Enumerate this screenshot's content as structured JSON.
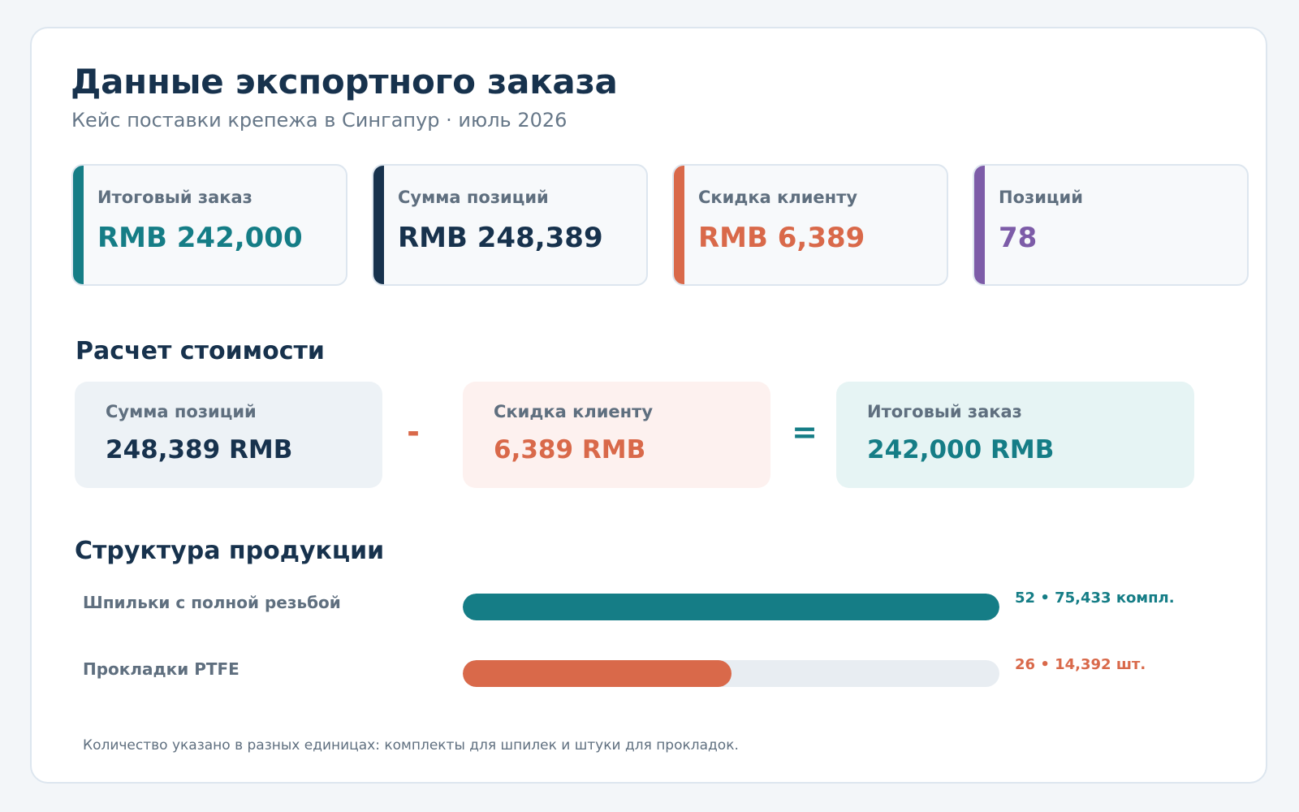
{
  "header": {
    "title": "Данные экспортного заказа",
    "subtitle": "Кейс поставки крепежа в Сингапур · июль 2026"
  },
  "kpis": [
    {
      "label": "Итоговый заказ",
      "value": "RMB 242,000",
      "color": "#157d86"
    },
    {
      "label": "Сумма позиций",
      "value": "RMB 248,389",
      "color": "#17324d"
    },
    {
      "label": "Скидка клиенту",
      "value": "RMB 6,389",
      "color": "#d9694a"
    },
    {
      "label": "Позиций",
      "value": "78",
      "color": "#7d5ca8"
    }
  ],
  "calculation": {
    "title": "Расчет стоимости",
    "items": [
      {
        "label": "Сумма позиций",
        "value": "248,389 RMB",
        "color": "#17324d",
        "background": "#edf2f6"
      },
      {
        "label": "Скидка клиенту",
        "value": "6,389 RMB",
        "color": "#d9694a",
        "background": "#fdf1ef"
      },
      {
        "label": "Итоговый заказ",
        "value": "242,000 RMB",
        "color": "#157d86",
        "background": "#e6f4f4"
      }
    ],
    "operators": {
      "minus": "-",
      "equals": "="
    }
  },
  "structure": {
    "title": "Структура продукции",
    "items": [
      {
        "label": "Шпильки с полной резьбой",
        "note": "52 • 75,433 компл.",
        "positions": 52,
        "fill_fraction": 1.0,
        "color": "#157d86"
      },
      {
        "label": "Прокладки PTFE",
        "note": "26 • 14,392 шт.",
        "positions": 26,
        "fill_fraction": 0.5,
        "color": "#d9694a"
      }
    ]
  },
  "footnote": "Количество указано в разных единицах: комплекты для шпилек и штуки для прокладок."
}
